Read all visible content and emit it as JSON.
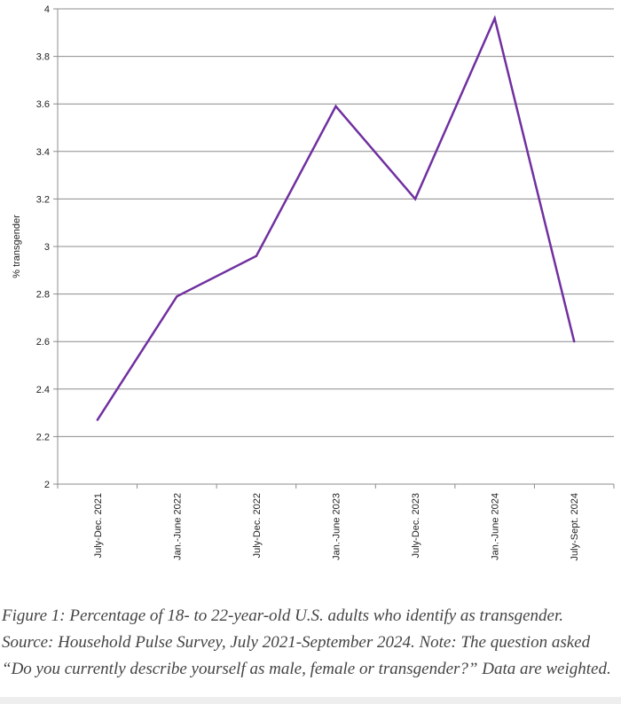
{
  "chart_data": {
    "type": "line",
    "title": "",
    "xlabel": "",
    "ylabel": "% transgender",
    "ylim": [
      2,
      4
    ],
    "yticks": [
      "2",
      "2.2",
      "2.4",
      "2.6",
      "2.8",
      "3",
      "3.2",
      "3.4",
      "3.6",
      "3.8",
      "4"
    ],
    "ytick_values": [
      2,
      2.2,
      2.4,
      2.6,
      2.8,
      3,
      3.2,
      3.4,
      3.6,
      3.8,
      4
    ],
    "grid": true,
    "categories": [
      "July-Dec. 2021",
      "Jan.-June 2022",
      "July-Dec. 2022",
      "Jan.-June 2023",
      "July-Dec. 2023",
      "Jan.-June 2024",
      "July-Sept. 2024"
    ],
    "series": [
      {
        "name": "% transgender",
        "color": "#7030a0",
        "values": [
          2.27,
          2.79,
          2.96,
          3.59,
          3.2,
          3.96,
          2.6
        ]
      }
    ]
  },
  "caption": "Figure 1: Percentage of 18- to 22-year-old U.S. adults who identify as transgender. Source: Household Pulse Survey, July 2021-September 2024. Note: The question asked “Do you currently describe yourself as male, female or transgender?” Data are weighted."
}
